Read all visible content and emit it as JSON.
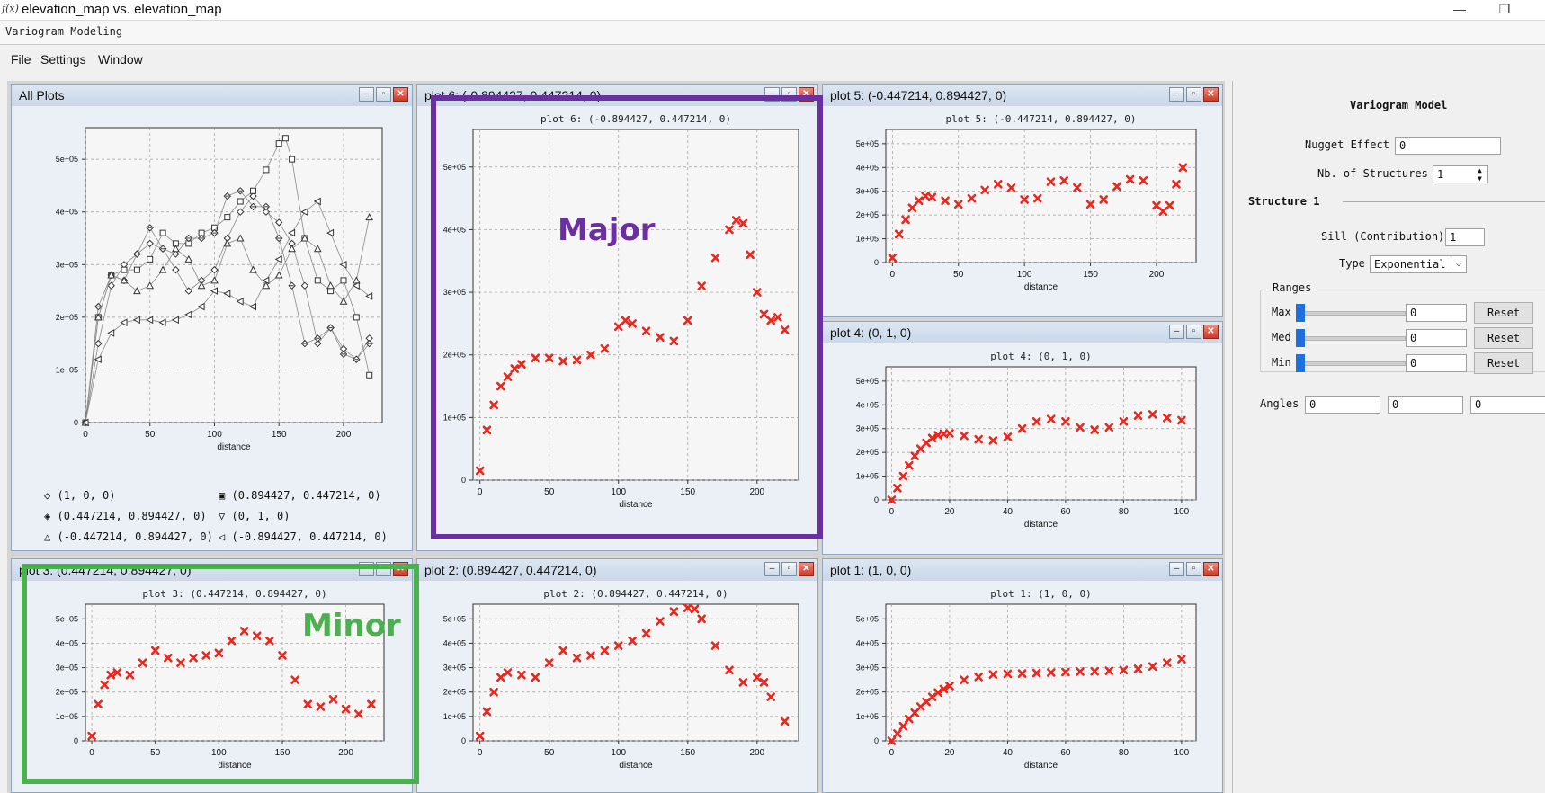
{
  "window": {
    "icon_text": "f(x)",
    "title": "elevation_map vs. elevation_map",
    "minimize": "—",
    "restore": "❐"
  },
  "topbar": {
    "label": "Variogram Modeling"
  },
  "menu": [
    "File",
    "Settings",
    "Window"
  ],
  "colors": {
    "accent": "#1f6fdc",
    "series": "#e8271f",
    "major_box": "#6a2fa0",
    "minor_box": "#4caf50"
  },
  "plots": [
    {
      "id": "all",
      "window_title": "All Plots",
      "plot_title": ""
    },
    {
      "id": "p6",
      "window_title": "plot 6:  (-0.894427, 0.447214, 0)",
      "plot_title": "plot 6:  (-0.894427,  0.447214,  0)"
    },
    {
      "id": "p5",
      "window_title": "plot 5:  (-0.447214, 0.894427, 0)",
      "plot_title": "plot 5:  (-0.447214,  0.894427,  0)"
    },
    {
      "id": "p4",
      "window_title": "plot 4:  (0, 1, 0)",
      "plot_title": "plot 4:  (0,  1,  0)"
    },
    {
      "id": "p3",
      "window_title": "plot 3:  (0.447214, 0.894427, 0)",
      "plot_title": "plot 3:  (0.447214,  0.894427,  0)"
    },
    {
      "id": "p2",
      "window_title": "plot 2:  (0.894427, 0.447214, 0)",
      "plot_title": "plot 2:  (0.894427,  0.447214,  0)"
    },
    {
      "id": "p1",
      "window_title": "plot 1:  (1, 0, 0)",
      "plot_title": "plot 1:  (1,  0,  0)"
    }
  ],
  "legend": [
    {
      "marker": "◇",
      "label": "(1,  0,  0)"
    },
    {
      "marker": "▣",
      "label": "(0.894427,  0.447214,  0)"
    },
    {
      "marker": "◈",
      "label": "(0.447214,  0.894427,  0)"
    },
    {
      "marker": "▽",
      "label": "(0,  1,  0)"
    },
    {
      "marker": "△",
      "label": "(-0.447214,  0.894427,  0)"
    },
    {
      "marker": "◁",
      "label": "(-0.894427,  0.447214,  0)"
    }
  ],
  "annotations": {
    "major": "Major",
    "minor": "Minor"
  },
  "model": {
    "heading": "Variogram Model",
    "nugget_label": "Nugget Effect",
    "nugget_value": "0",
    "nstruct_label": "Nb. of Structures",
    "nstruct_value": "1",
    "structure_heading": "Structure 1",
    "sill_label": "Sill (Contribution)",
    "sill_value": "1",
    "type_label": "Type",
    "type_value": "Exponential",
    "ranges_label": "Ranges",
    "ranges": [
      {
        "label": "Max",
        "value": "0",
        "reset": "Reset"
      },
      {
        "label": "Med",
        "value": "0",
        "reset": "Reset"
      },
      {
        "label": "Min",
        "value": "0",
        "reset": "Reset"
      }
    ],
    "angles_label": "Angles",
    "angles": [
      "0",
      "0",
      "0"
    ]
  },
  "chart_data": [
    {
      "id": "all",
      "type": "scatter",
      "xlabel": "distance",
      "xlim": [
        0,
        230
      ],
      "ylim": [
        0,
        560000
      ],
      "xticks": [
        0,
        50,
        100,
        150,
        200
      ],
      "yticks": [
        0,
        100000,
        200000,
        300000,
        400000,
        500000
      ],
      "ytick_labels": [
        "0",
        "1e+05",
        "2e+05",
        "3e+05",
        "4e+05",
        "5e+05"
      ],
      "series": [
        {
          "marker": "diamond",
          "x": [
            0,
            10,
            20,
            30,
            40,
            50,
            60,
            70,
            80,
            90,
            100,
            110,
            120,
            130,
            140,
            150,
            160,
            170,
            180,
            190,
            200,
            210,
            220
          ],
          "y": [
            0,
            150000,
            260000,
            300000,
            320000,
            340000,
            330000,
            290000,
            250000,
            270000,
            290000,
            350000,
            400000,
            430000,
            400000,
            380000,
            340000,
            260000,
            150000,
            180000,
            140000,
            120000,
            160000
          ]
        },
        {
          "marker": "square",
          "x": [
            0,
            10,
            20,
            30,
            40,
            50,
            60,
            70,
            80,
            90,
            100,
            110,
            120,
            130,
            140,
            150,
            155,
            160,
            170,
            180,
            190,
            200,
            210,
            220
          ],
          "y": [
            0,
            200000,
            280000,
            290000,
            290000,
            310000,
            360000,
            340000,
            340000,
            360000,
            370000,
            390000,
            420000,
            440000,
            480000,
            530000,
            540000,
            500000,
            350000,
            270000,
            250000,
            270000,
            200000,
            90000
          ]
        },
        {
          "marker": "diamondcross",
          "x": [
            0,
            10,
            20,
            30,
            40,
            50,
            60,
            70,
            80,
            90,
            100,
            110,
            120,
            130,
            140,
            150,
            160,
            170,
            180,
            190,
            200,
            210,
            220
          ],
          "y": [
            0,
            220000,
            280000,
            270000,
            320000,
            370000,
            330000,
            320000,
            350000,
            350000,
            360000,
            430000,
            440000,
            410000,
            410000,
            350000,
            260000,
            150000,
            160000,
            180000,
            130000,
            120000,
            150000
          ]
        },
        {
          "marker": "triangle",
          "x": [
            0,
            10,
            20,
            30,
            40,
            50,
            60,
            70,
            80,
            90,
            100,
            110,
            120,
            130,
            140,
            150,
            160,
            170,
            180,
            190,
            200,
            210,
            220
          ],
          "y": [
            0,
            200000,
            280000,
            270000,
            250000,
            260000,
            290000,
            330000,
            310000,
            260000,
            270000,
            340000,
            350000,
            290000,
            260000,
            280000,
            330000,
            350000,
            330000,
            260000,
            230000,
            270000,
            390000
          ]
        },
        {
          "marker": "triangleleft",
          "x": [
            0,
            10,
            20,
            30,
            40,
            50,
            60,
            70,
            80,
            90,
            100,
            110,
            120,
            130,
            140,
            150,
            160,
            170,
            180,
            190,
            200,
            210,
            220
          ],
          "y": [
            0,
            120000,
            170000,
            190000,
            195000,
            195000,
            190000,
            195000,
            205000,
            220000,
            250000,
            245000,
            230000,
            220000,
            270000,
            310000,
            360000,
            400000,
            420000,
            360000,
            300000,
            260000,
            240000
          ]
        }
      ]
    },
    {
      "id": "p6",
      "type": "scatter",
      "title": "plot 6:  (-0.894427,  0.447214,  0)",
      "xlabel": "distance",
      "xlim": [
        -5,
        230
      ],
      "ylim": [
        0,
        560000
      ],
      "xticks": [
        0,
        50,
        100,
        150,
        200
      ],
      "yticks": [
        0,
        100000,
        200000,
        300000,
        400000,
        500000
      ],
      "ytick_labels": [
        "0",
        "1e+05",
        "2e+05",
        "3e+05",
        "4e+05",
        "5e+05"
      ],
      "series": [
        {
          "x": [
            0,
            5,
            10,
            15,
            20,
            25,
            30,
            40,
            50,
            60,
            70,
            80,
            90,
            100,
            105,
            110,
            120,
            130,
            140,
            150,
            160,
            170,
            180,
            185,
            190,
            195,
            200,
            205,
            210,
            215,
            220
          ],
          "y": [
            15000,
            80000,
            120000,
            150000,
            165000,
            178000,
            185000,
            195000,
            195000,
            190000,
            192000,
            200000,
            210000,
            245000,
            255000,
            250000,
            238000,
            228000,
            222000,
            255000,
            310000,
            355000,
            400000,
            415000,
            410000,
            360000,
            300000,
            265000,
            255000,
            260000,
            240000
          ]
        }
      ]
    },
    {
      "id": "p5",
      "type": "scatter",
      "title": "plot 5:  (-0.447214,  0.894427,  0)",
      "xlabel": "distance",
      "xlim": [
        -5,
        230
      ],
      "ylim": [
        0,
        560000
      ],
      "xticks": [
        0,
        50,
        100,
        150,
        200
      ],
      "yticks": [
        0,
        100000,
        200000,
        300000,
        400000,
        500000
      ],
      "ytick_labels": [
        "0",
        "1e+05",
        "2e+05",
        "3e+05",
        "4e+05",
        "5e+05"
      ],
      "series": [
        {
          "x": [
            0,
            5,
            10,
            15,
            20,
            25,
            30,
            40,
            50,
            60,
            70,
            80,
            90,
            100,
            110,
            120,
            130,
            140,
            150,
            160,
            170,
            180,
            190,
            200,
            205,
            210,
            215,
            220
          ],
          "y": [
            20000,
            120000,
            180000,
            230000,
            260000,
            280000,
            275000,
            260000,
            245000,
            270000,
            305000,
            330000,
            315000,
            265000,
            270000,
            340000,
            345000,
            315000,
            245000,
            265000,
            320000,
            350000,
            345000,
            240000,
            215000,
            240000,
            330000,
            400000
          ]
        }
      ]
    },
    {
      "id": "p4",
      "type": "scatter",
      "title": "plot 4:  (0,  1,  0)",
      "xlabel": "distance",
      "xlim": [
        -2,
        105
      ],
      "ylim": [
        0,
        560000
      ],
      "xticks": [
        0,
        20,
        40,
        60,
        80,
        100
      ],
      "yticks": [
        0,
        100000,
        200000,
        300000,
        400000,
        500000
      ],
      "ytick_labels": [
        "0",
        "1e+05",
        "2e+05",
        "3e+05",
        "4e+05",
        "5e+05"
      ],
      "series": [
        {
          "x": [
            0,
            2,
            4,
            6,
            8,
            10,
            12,
            14,
            16,
            18,
            20,
            25,
            30,
            35,
            40,
            45,
            50,
            55,
            60,
            65,
            70,
            75,
            80,
            85,
            90,
            95,
            100
          ],
          "y": [
            0,
            50000,
            100000,
            145000,
            185000,
            215000,
            240000,
            260000,
            272000,
            278000,
            280000,
            270000,
            255000,
            250000,
            265000,
            300000,
            330000,
            340000,
            330000,
            305000,
            295000,
            305000,
            330000,
            355000,
            360000,
            345000,
            335000
          ]
        }
      ]
    },
    {
      "id": "p3",
      "type": "scatter",
      "title": "plot 3:  (0.447214,  0.894427,  0)",
      "xlabel": "distance",
      "xlim": [
        -5,
        230
      ],
      "ylim": [
        0,
        560000
      ],
      "xticks": [
        0,
        50,
        100,
        150,
        200
      ],
      "yticks": [
        0,
        100000,
        200000,
        300000,
        400000,
        500000
      ],
      "ytick_labels": [
        "0",
        "1e+05",
        "2e+05",
        "3e+05",
        "4e+05",
        "5e+05"
      ],
      "series": [
        {
          "x": [
            0,
            5,
            10,
            15,
            20,
            30,
            40,
            50,
            60,
            70,
            80,
            90,
            100,
            110,
            120,
            130,
            140,
            150,
            160,
            170,
            180,
            190,
            200,
            210,
            220
          ],
          "y": [
            20000,
            150000,
            230000,
            270000,
            280000,
            270000,
            320000,
            370000,
            340000,
            320000,
            340000,
            350000,
            360000,
            410000,
            450000,
            430000,
            410000,
            350000,
            250000,
            150000,
            140000,
            170000,
            130000,
            110000,
            150000
          ]
        }
      ]
    },
    {
      "id": "p2",
      "type": "scatter",
      "title": "plot 2:  (0.894427,  0.447214,  0)",
      "xlabel": "distance",
      "xlim": [
        -5,
        230
      ],
      "ylim": [
        0,
        560000
      ],
      "xticks": [
        0,
        50,
        100,
        150,
        200
      ],
      "yticks": [
        0,
        100000,
        200000,
        300000,
        400000,
        500000
      ],
      "ytick_labels": [
        "0",
        "1e+05",
        "2e+05",
        "3e+05",
        "4e+05",
        "5e+05"
      ],
      "series": [
        {
          "x": [
            0,
            5,
            10,
            15,
            20,
            30,
            40,
            50,
            60,
            70,
            80,
            90,
            100,
            110,
            120,
            130,
            140,
            150,
            155,
            160,
            170,
            180,
            190,
            200,
            205,
            210,
            220
          ],
          "y": [
            20000,
            120000,
            200000,
            260000,
            280000,
            270000,
            260000,
            320000,
            370000,
            340000,
            350000,
            370000,
            390000,
            410000,
            440000,
            490000,
            530000,
            545000,
            540000,
            500000,
            390000,
            290000,
            240000,
            260000,
            240000,
            180000,
            80000
          ]
        }
      ]
    },
    {
      "id": "p1",
      "type": "scatter",
      "title": "plot 1:  (1,  0,  0)",
      "xlabel": "distance",
      "xlim": [
        -2,
        105
      ],
      "ylim": [
        0,
        560000
      ],
      "xticks": [
        0,
        20,
        40,
        60,
        80,
        100
      ],
      "yticks": [
        0,
        100000,
        200000,
        300000,
        400000,
        500000
      ],
      "ytick_labels": [
        "0",
        "1e+05",
        "2e+05",
        "3e+05",
        "4e+05",
        "5e+05"
      ],
      "series": [
        {
          "x": [
            0,
            2,
            4,
            6,
            8,
            10,
            12,
            14,
            16,
            18,
            20,
            25,
            30,
            35,
            40,
            45,
            50,
            55,
            60,
            65,
            70,
            75,
            80,
            85,
            90,
            95,
            100
          ],
          "y": [
            0,
            30000,
            60000,
            90000,
            115000,
            140000,
            160000,
            180000,
            198000,
            212000,
            225000,
            250000,
            262000,
            272000,
            275000,
            276000,
            278000,
            280000,
            282000,
            284000,
            285000,
            287000,
            290000,
            295000,
            305000,
            320000,
            335000
          ]
        }
      ]
    }
  ]
}
